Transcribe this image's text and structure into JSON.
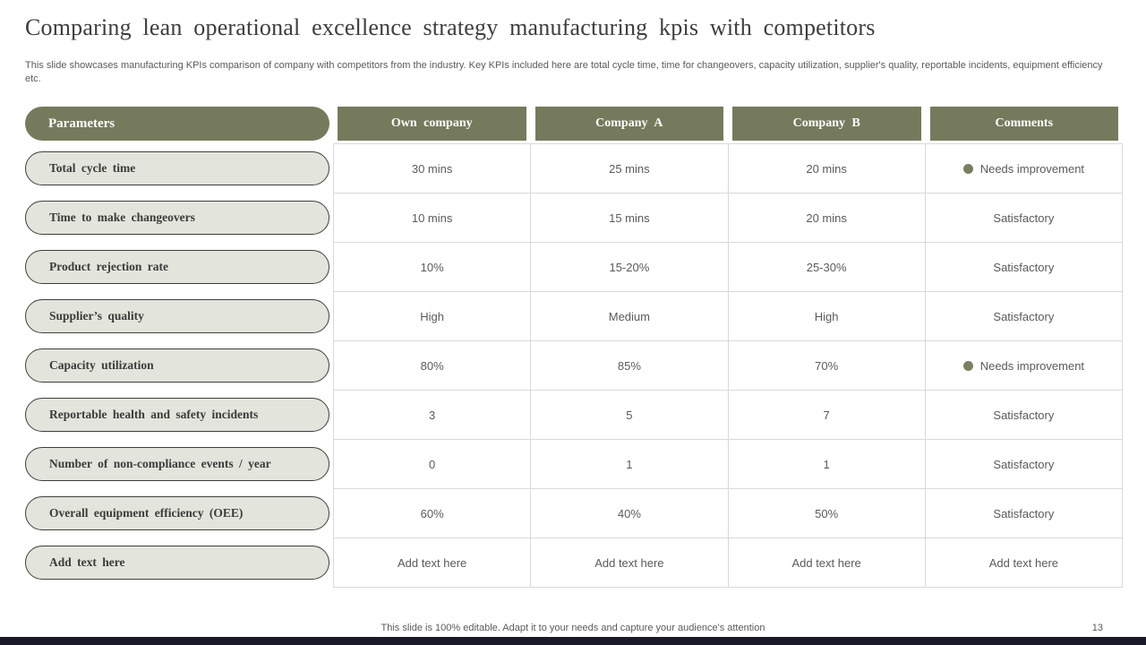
{
  "slide": {
    "title": "Comparing lean operational excellence strategy manufacturing kpis with competitors",
    "description": "This slide showcases manufacturing KPIs comparison of company with competitors from the industry. Key KPIs included here are total cycle time, time for changeovers, capacity utilization, supplier's quality, reportable incidents, equipment efficiency etc.",
    "footer_note": "This slide is 100% editable. Adapt it to your needs and capture your audience's attention",
    "page_number": "13"
  },
  "table": {
    "row_header_title": "Parameters",
    "columns": [
      "Own company",
      "Company A",
      "Company B",
      "Comments"
    ],
    "rows": [
      {
        "parameter": "Total cycle time",
        "own_company": "30 mins",
        "company_a": "25 mins",
        "company_b": "20 mins",
        "comment": "Needs improvement",
        "comment_dot": true
      },
      {
        "parameter": "Time to make changeovers",
        "own_company": "10 mins",
        "company_a": "15 mins",
        "company_b": "20 mins",
        "comment": "Satisfactory",
        "comment_dot": false
      },
      {
        "parameter": "Product rejection rate",
        "own_company": "10%",
        "company_a": "15-20%",
        "company_b": "25-30%",
        "comment": "Satisfactory",
        "comment_dot": false
      },
      {
        "parameter": "Supplier’s quality",
        "own_company": "High",
        "company_a": "Medium",
        "company_b": "High",
        "comment": "Satisfactory",
        "comment_dot": false
      },
      {
        "parameter": "Capacity utilization",
        "own_company": "80%",
        "company_a": "85%",
        "company_b": "70%",
        "comment": "Needs improvement",
        "comment_dot": true
      },
      {
        "parameter": "Reportable health and safety incidents",
        "own_company": "3",
        "company_a": "5",
        "company_b": "7",
        "comment": "Satisfactory",
        "comment_dot": false
      },
      {
        "parameter": "Number of non-compliance events / year",
        "own_company": "0",
        "company_a": "1",
        "company_b": "1",
        "comment": "Satisfactory",
        "comment_dot": false
      },
      {
        "parameter": "Overall equipment efficiency (OEE)",
        "own_company": "60%",
        "company_a": "40%",
        "company_b": "50%",
        "comment": "Satisfactory",
        "comment_dot": false
      },
      {
        "parameter": "Add text here",
        "own_company": "Add text here",
        "company_a": "Add text here",
        "company_b": "Add text here",
        "comment": "Add text here",
        "comment_dot": false
      }
    ]
  },
  "colors": {
    "header_fill": "#767a5d",
    "pill_fill": "#e3e4db",
    "pill_border": "#3f3f3f",
    "status_dot": "#7b7f61",
    "grid_line": "#d9d9d9",
    "text_muted": "#5a5a5a",
    "bottom_bar": "#191929"
  }
}
